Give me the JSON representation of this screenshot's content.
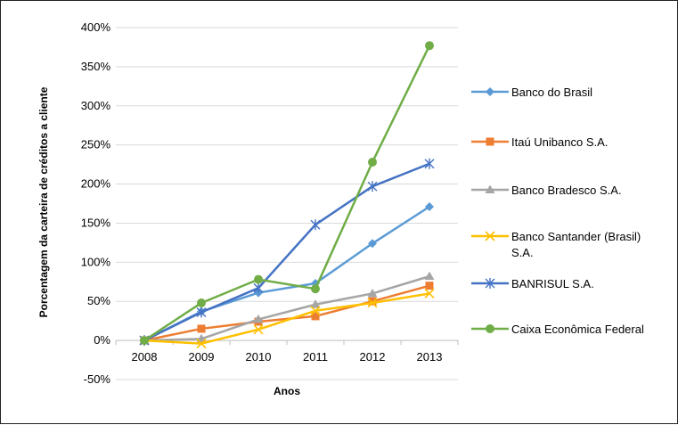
{
  "chart_data": {
    "type": "line",
    "title": "",
    "xlabel": "Anos",
    "ylabel": "Porcentagem da carteira de créditos a cliente",
    "categories": [
      "2008",
      "2009",
      "2010",
      "2011",
      "2012",
      "2013"
    ],
    "ylim": [
      -50,
      400
    ],
    "yticks": [
      "-50%",
      "0%",
      "50%",
      "100%",
      "150%",
      "200%",
      "250%",
      "300%",
      "350%",
      "400%"
    ],
    "ytick_values": [
      -50,
      0,
      50,
      100,
      150,
      200,
      250,
      300,
      350,
      400
    ],
    "grid": true,
    "legend_position": "right",
    "series": [
      {
        "name": "Banco do Brasil",
        "color": "#5B9BD5",
        "marker": "diamond",
        "values": [
          0,
          37,
          61,
          73,
          124,
          171
        ]
      },
      {
        "name": "Itaú Unibanco S.A.",
        "color": "#ED7D31",
        "marker": "square",
        "values": [
          0,
          15,
          24,
          31,
          50,
          70
        ]
      },
      {
        "name": "Banco Bradesco S.A.",
        "color": "#A5A5A5",
        "marker": "triangle",
        "values": [
          0,
          2,
          27,
          46,
          60,
          82
        ]
      },
      {
        "name": "Banco Santander (Brasil) S.A.",
        "color": "#FFC000",
        "marker": "x",
        "values": [
          0,
          -4,
          14,
          38,
          48,
          60
        ]
      },
      {
        "name": "BANRISUL S.A.",
        "color": "#4472C4",
        "marker": "star",
        "values": [
          0,
          36,
          67,
          148,
          197,
          226
        ]
      },
      {
        "name": "Caixa Econômica Federal",
        "color": "#70AD47",
        "marker": "circle",
        "values": [
          0,
          48,
          78,
          66,
          228,
          377
        ]
      }
    ]
  }
}
